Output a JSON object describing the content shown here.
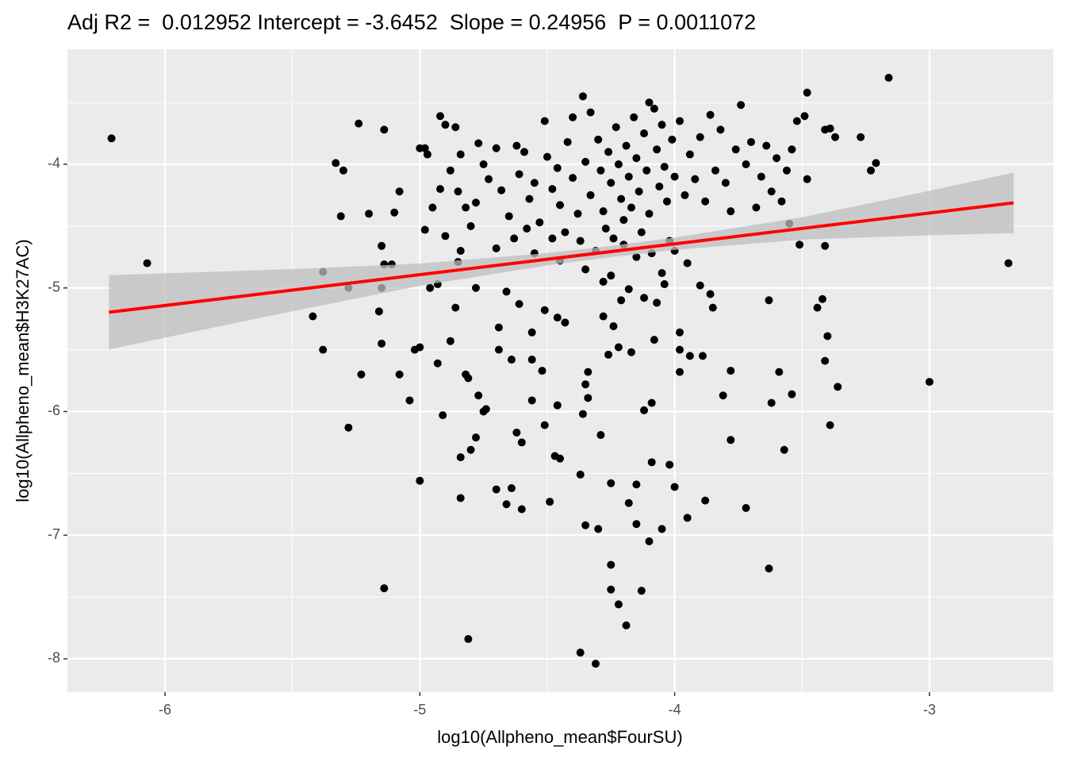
{
  "chart_data": {
    "type": "scatter",
    "title": "Adj R2 =  0.012952 Intercept = -3.6452  Slope = 0.24956  P = 0.0011072",
    "x_label": "log10(Allpheno_mean$FourSU)",
    "y_label": "log10(Allpheno_mean$H3K27AC)",
    "xlim": [
      -6.383,
      -2.514
    ],
    "ylim": [
      -8.27,
      -3.069
    ],
    "xticks": [
      -6,
      -5,
      -4,
      -3
    ],
    "yticks": [
      -8,
      -7,
      -6,
      -5,
      -4
    ],
    "x_minor_ticks": [
      -5.5,
      -4.5,
      -3.5
    ],
    "y_minor_ticks": [
      -7.5,
      -6.5,
      -5.5,
      -4.5,
      -3.5
    ],
    "grid": true,
    "color": "#000000",
    "x": [
      -6.21,
      -6.07,
      -5.38,
      -5.33,
      -5.3,
      -5.31,
      -5.42,
      -5.38,
      -5.28,
      -5.14,
      -4.81,
      -4.37,
      -4.31,
      -3.16,
      -2.69,
      -3.0,
      -3.63,
      -3.27,
      -3.23,
      -3.21,
      -5.28,
      -5.24,
      -5.14,
      -5.2,
      -5.1,
      -5.08,
      -5.15,
      -5.14,
      -5.11,
      -5.15,
      -5.16,
      -5.15,
      -5.23,
      -5.08,
      -5.04,
      -5.0,
      -5.0,
      -5.02,
      -4.93,
      -4.91,
      -4.88,
      -4.86,
      -4.84,
      -4.84,
      -4.8,
      -4.78,
      -4.82,
      -4.77,
      -4.75,
      -4.74,
      -4.69,
      -4.7,
      -4.66,
      -4.64,
      -4.6,
      -4.62,
      -4.6,
      -4.49,
      -4.47,
      -4.45,
      -4.46,
      -4.51,
      -4.56,
      -4.37,
      -4.35,
      -4.3,
      -4.25,
      -4.25,
      -4.25,
      -4.22,
      -4.19,
      -4.13,
      -4.18,
      -4.15,
      -4.1,
      -4.05,
      -3.95,
      -4.0,
      -4.02,
      -3.88,
      -3.78,
      -3.72,
      -3.57,
      -3.39,
      -3.36,
      -3.41,
      -3.4,
      -3.44,
      -3.42,
      -3.51,
      -3.55,
      -3.41,
      -3.48,
      -3.41,
      -3.39,
      -3.37,
      -3.48,
      -3.49,
      -3.62,
      -3.54,
      -3.59,
      -3.63,
      -3.52,
      -3.78,
      -3.81,
      -3.85,
      -3.89,
      -3.94,
      -3.98,
      -3.98,
      -4.08,
      -4.09,
      -4.12,
      -4.09,
      -4.15,
      -4.29,
      -4.36,
      -4.34,
      -4.35,
      -4.34,
      -4.26,
      -4.22,
      -4.17,
      -4.24,
      -4.28,
      -4.21,
      -4.18,
      -4.07,
      -4.04,
      -3.98,
      -4.46,
      -4.43,
      -4.51,
      -4.56,
      -4.52,
      -4.56,
      -4.69,
      -4.64,
      -4.61,
      -4.66,
      -4.78,
      -4.81,
      -4.93,
      -4.96,
      -4.85,
      -4.84,
      -4.98,
      -4.98,
      -4.97,
      -4.92,
      -4.9,
      -4.88,
      -4.85,
      -4.82,
      -4.8,
      -4.78,
      -4.75,
      -4.73,
      -4.7,
      -4.68,
      -4.65,
      -4.63,
      -4.61,
      -4.59,
      -4.57,
      -4.55,
      -4.53,
      -4.51,
      -4.5,
      -4.48,
      -4.46,
      -4.45,
      -4.43,
      -4.42,
      -4.4,
      -4.38,
      -4.37,
      -4.36,
      -4.35,
      -4.33,
      -4.31,
      -4.3,
      -4.29,
      -4.28,
      -4.27,
      -4.26,
      -4.25,
      -4.24,
      -4.23,
      -4.22,
      -4.21,
      -4.2,
      -4.19,
      -4.18,
      -4.17,
      -4.16,
      -4.15,
      -4.14,
      -4.13,
      -4.12,
      -4.11,
      -4.1,
      -4.09,
      -4.08,
      -4.07,
      -4.06,
      -4.05,
      -4.04,
      -4.03,
      -4.02,
      -4.01,
      -4.0,
      -3.98,
      -3.96,
      -3.94,
      -3.92,
      -3.9,
      -3.88,
      -3.86,
      -3.84,
      -3.82,
      -3.8,
      -3.78,
      -3.76,
      -3.74,
      -3.72,
      -3.7,
      -3.68,
      -3.66,
      -3.64,
      -3.62,
      -3.6,
      -3.58,
      -3.56,
      -3.54,
      -4.86,
      -4.84,
      -4.95,
      -5.0,
      -4.92,
      -4.77,
      -4.62,
      -4.58,
      -4.48,
      -4.4,
      -4.33,
      -4.2,
      -4.15,
      -4.1,
      -4.0,
      -3.95,
      -4.05,
      -4.25,
      -4.35,
      -4.45,
      -4.55,
      -4.7,
      -4.9,
      -4.28,
      -4.12,
      -3.9,
      -3.86
    ],
    "y": [
      -3.79,
      -4.8,
      -4.87,
      -3.99,
      -4.05,
      -4.42,
      -5.23,
      -5.5,
      -6.13,
      -7.43,
      -7.84,
      -7.95,
      -8.04,
      -3.3,
      -4.8,
      -5.76,
      -7.27,
      -3.78,
      -4.05,
      -3.99,
      -5.0,
      -3.67,
      -3.72,
      -4.4,
      -4.39,
      -4.22,
      -4.66,
      -4.81,
      -4.81,
      -5.0,
      -5.19,
      -5.45,
      -5.7,
      -5.7,
      -5.91,
      -6.56,
      -5.48,
      -5.5,
      -5.61,
      -6.03,
      -5.43,
      -5.16,
      -6.7,
      -6.37,
      -6.31,
      -6.21,
      -5.7,
      -5.87,
      -6.0,
      -5.98,
      -5.32,
      -6.63,
      -6.75,
      -6.62,
      -6.79,
      -6.17,
      -6.25,
      -6.73,
      -6.36,
      -6.38,
      -5.95,
      -6.11,
      -5.91,
      -6.51,
      -6.92,
      -6.95,
      -6.58,
      -7.24,
      -7.44,
      -7.56,
      -7.73,
      -7.45,
      -6.74,
      -6.91,
      -7.05,
      -6.95,
      -6.86,
      -6.61,
      -6.43,
      -6.72,
      -6.23,
      -6.78,
      -6.31,
      -6.11,
      -5.8,
      -5.59,
      -5.39,
      -5.16,
      -5.09,
      -4.65,
      -4.48,
      -4.66,
      -3.42,
      -3.72,
      -3.71,
      -3.78,
      -4.12,
      -3.61,
      -5.93,
      -5.86,
      -5.68,
      -5.1,
      -3.65,
      -5.67,
      -5.87,
      -5.16,
      -5.55,
      -5.55,
      -5.68,
      -5.5,
      -5.42,
      -5.93,
      -5.99,
      -6.41,
      -6.59,
      -6.19,
      -6.02,
      -5.89,
      -5.78,
      -5.68,
      -5.54,
      -5.48,
      -5.52,
      -5.31,
      -5.23,
      -5.1,
      -5.01,
      -5.12,
      -4.97,
      -5.36,
      -5.24,
      -5.28,
      -5.18,
      -5.36,
      -5.67,
      -5.58,
      -5.5,
      -5.58,
      -5.13,
      -5.03,
      -5.0,
      -5.73,
      -4.97,
      -5.0,
      -4.79,
      -4.7,
      -4.53,
      -3.87,
      -3.92,
      -3.61,
      -3.68,
      -4.05,
      -4.22,
      -4.35,
      -4.5,
      -4.31,
      -4.0,
      -4.12,
      -3.87,
      -4.21,
      -4.42,
      -4.6,
      -4.08,
      -3.9,
      -4.28,
      -4.15,
      -4.47,
      -3.65,
      -3.94,
      -4.2,
      -4.03,
      -4.33,
      -4.55,
      -3.82,
      -4.11,
      -4.4,
      -4.62,
      -3.45,
      -3.98,
      -4.25,
      -4.7,
      -3.8,
      -4.05,
      -4.38,
      -4.52,
      -3.9,
      -4.15,
      -4.6,
      -3.7,
      -4.0,
      -4.28,
      -4.45,
      -3.85,
      -4.1,
      -4.35,
      -3.62,
      -3.95,
      -4.22,
      -4.55,
      -3.75,
      -4.05,
      -4.4,
      -4.72,
      -3.55,
      -3.88,
      -4.18,
      -3.68,
      -4.02,
      -4.3,
      -4.62,
      -3.8,
      -4.1,
      -3.65,
      -4.25,
      -3.92,
      -4.12,
      -3.78,
      -4.3,
      -3.6,
      -4.05,
      -3.72,
      -4.15,
      -4.38,
      -3.88,
      -3.52,
      -4.0,
      -3.82,
      -4.35,
      -4.1,
      -3.85,
      -4.22,
      -3.95,
      -4.3,
      -4.05,
      -3.88,
      -3.7,
      -3.92,
      -4.35,
      -3.87,
      -4.2,
      -3.83,
      -3.85,
      -4.52,
      -4.6,
      -3.62,
      -3.58,
      -4.65,
      -4.75,
      -3.5,
      -4.7,
      -4.8,
      -4.88,
      -4.9,
      -4.85,
      -4.78,
      -4.72,
      -4.68,
      -4.58,
      -4.95,
      -5.08,
      -4.98,
      -5.05
    ],
    "fit_line": {
      "x": [
        -6.22,
        -2.67
      ],
      "y": [
        -5.197,
        -4.312
      ],
      "color": "#ff0000"
    },
    "confidence_band": {
      "x": [
        -6.22,
        -5.5,
        -5,
        -4.5,
        -4.3,
        -4,
        -3.5,
        -3,
        -2.67
      ],
      "lower": [
        -5.497,
        -5.188,
        -4.983,
        -4.818,
        -4.763,
        -4.693,
        -4.609,
        -4.574,
        -4.557
      ],
      "upper": [
        -4.897,
        -4.848,
        -4.803,
        -4.718,
        -4.673,
        -4.593,
        -4.429,
        -4.214,
        -4.067
      ],
      "color": "#bdbdbd"
    }
  }
}
